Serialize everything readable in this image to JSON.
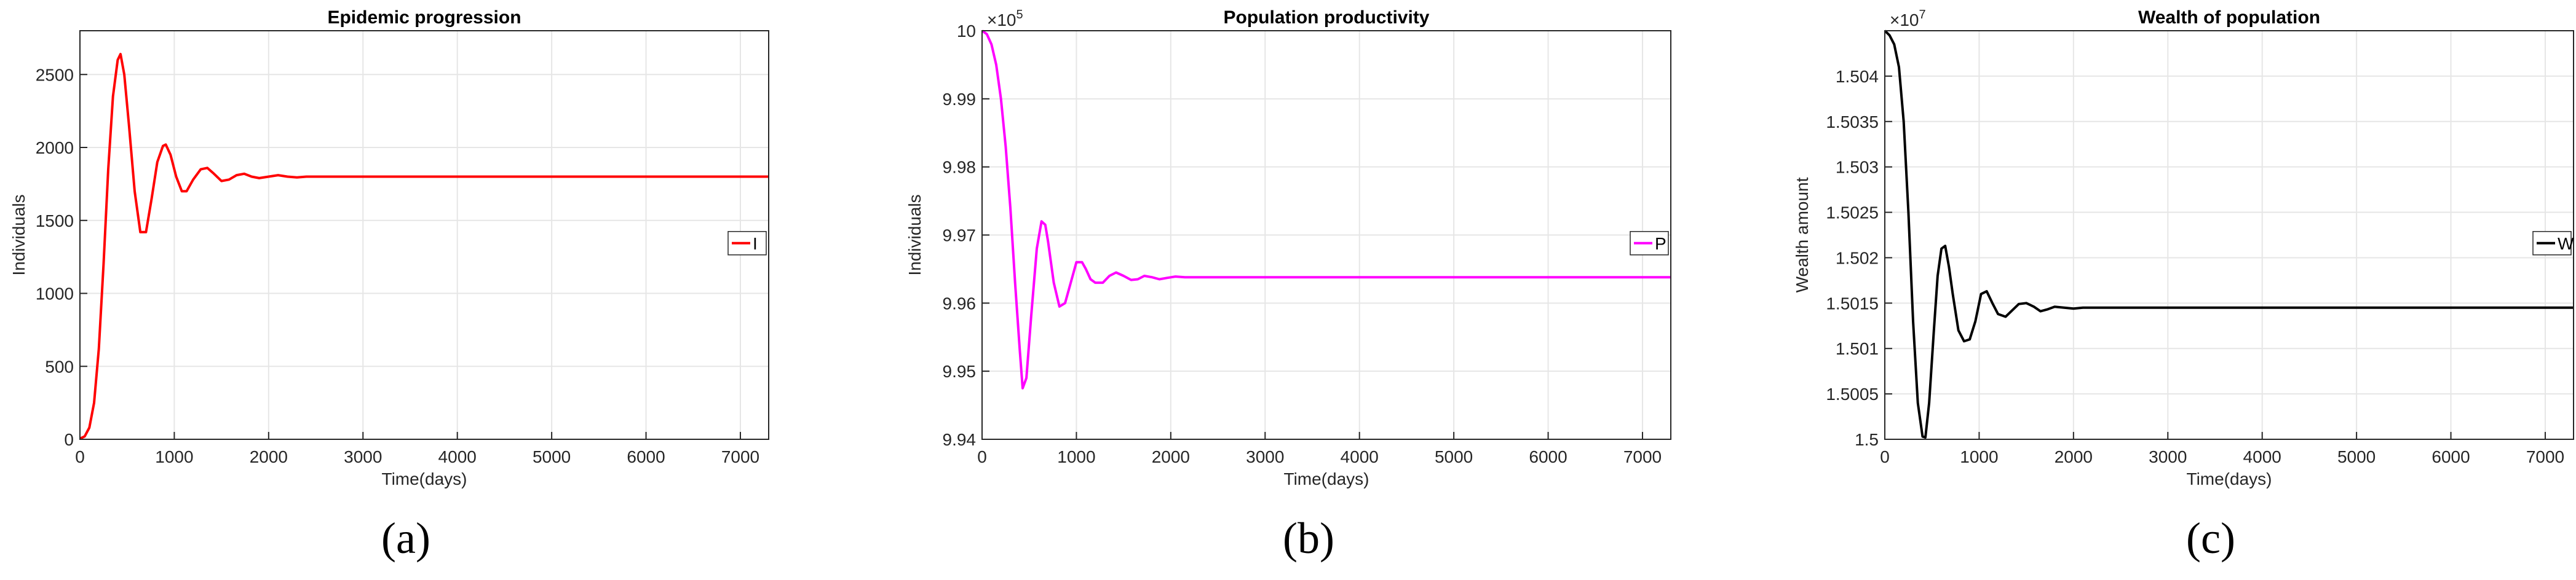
{
  "chart_data": [
    {
      "type": "line",
      "title": "Epidemic progression",
      "xlabel": "Time(days)",
      "ylabel": "Individuals",
      "xlim": [
        0,
        7300
      ],
      "ylim": [
        0,
        2800
      ],
      "xticks": [
        "0",
        "1000",
        "2000",
        "3000",
        "4000",
        "5000",
        "6000",
        "7000"
      ],
      "yticks": [
        "0",
        "500",
        "1000",
        "1500",
        "2000",
        "2500"
      ],
      "exponent": "",
      "grid": true,
      "legend_position": "right",
      "caption": "(a)",
      "series": [
        {
          "name": "I",
          "color": "#ff0000",
          "x": [
            0,
            50,
            100,
            150,
            200,
            250,
            300,
            350,
            400,
            430,
            470,
            520,
            580,
            640,
            700,
            760,
            820,
            880,
            910,
            960,
            1020,
            1080,
            1130,
            1200,
            1280,
            1350,
            1420,
            1500,
            1580,
            1660,
            1740,
            1820,
            1900,
            2000,
            2100,
            2200,
            2300,
            2400,
            2500,
            2600,
            2700,
            2800,
            3000,
            3300,
            4000,
            5000,
            6000,
            7300
          ],
          "y": [
            5,
            20,
            80,
            250,
            620,
            1200,
            1850,
            2350,
            2600,
            2640,
            2500,
            2150,
            1700,
            1420,
            1420,
            1650,
            1900,
            2010,
            2020,
            1950,
            1800,
            1700,
            1700,
            1780,
            1850,
            1860,
            1820,
            1770,
            1780,
            1810,
            1820,
            1800,
            1790,
            1800,
            1810,
            1800,
            1795,
            1800,
            1800,
            1800,
            1800,
            1800,
            1800,
            1800,
            1800,
            1800,
            1800,
            1800
          ]
        }
      ]
    },
    {
      "type": "line",
      "title": "Population productivity",
      "xlabel": "Time(days)",
      "ylabel": "Individuals",
      "xlim": [
        0,
        7300
      ],
      "ylim": [
        9.94,
        10
      ],
      "xticks": [
        "0",
        "1000",
        "2000",
        "3000",
        "4000",
        "5000",
        "6000",
        "7000"
      ],
      "yticks": [
        "9.94",
        "9.95",
        "9.96",
        "9.97",
        "9.98",
        "9.99",
        "10"
      ],
      "exponent": "5",
      "grid": true,
      "legend_position": "right",
      "caption": "(b)",
      "series": [
        {
          "name": "P",
          "color": "#ff00ff",
          "x": [
            0,
            50,
            100,
            150,
            200,
            250,
            300,
            350,
            400,
            430,
            470,
            520,
            580,
            630,
            670,
            700,
            760,
            820,
            880,
            940,
            1000,
            1060,
            1100,
            1150,
            1200,
            1280,
            1350,
            1420,
            1500,
            1580,
            1650,
            1720,
            1800,
            1880,
            1960,
            2050,
            2150,
            2300,
            2500,
            2800,
            3200,
            4000,
            5000,
            6000,
            7300
          ],
          "y": [
            10.0,
            9.9995,
            9.998,
            9.995,
            9.99,
            9.983,
            9.974,
            9.963,
            9.953,
            9.9475,
            9.949,
            9.958,
            9.968,
            9.972,
            9.9715,
            9.969,
            9.963,
            9.9595,
            9.96,
            9.963,
            9.966,
            9.966,
            9.965,
            9.9635,
            9.963,
            9.963,
            9.964,
            9.9645,
            9.964,
            9.9634,
            9.9635,
            9.964,
            9.9638,
            9.9635,
            9.9637,
            9.9639,
            9.9638,
            9.9638,
            9.9638,
            9.9638,
            9.9638,
            9.9638,
            9.9638,
            9.9638,
            9.9638
          ]
        }
      ]
    },
    {
      "type": "line",
      "title": "Wealth of population",
      "xlabel": "Time(days)",
      "ylabel": "Wealth amount",
      "xlim": [
        0,
        7300
      ],
      "ylim": [
        1.5,
        1.5045
      ],
      "xticks": [
        "0",
        "1000",
        "2000",
        "3000",
        "4000",
        "5000",
        "6000",
        "7000"
      ],
      "yticks": [
        "1.5",
        "1.5005",
        "1.501",
        "1.5015",
        "1.502",
        "1.5025",
        "1.503",
        "1.5035",
        "1.504"
      ],
      "exponent": "7",
      "grid": true,
      "legend_position": "right",
      "caption": "(c)",
      "series": [
        {
          "name": "W",
          "color": "#000000",
          "x": [
            0,
            50,
            100,
            150,
            200,
            250,
            300,
            350,
            400,
            430,
            470,
            520,
            560,
            600,
            640,
            680,
            720,
            780,
            840,
            900,
            960,
            1020,
            1080,
            1140,
            1200,
            1280,
            1350,
            1420,
            1500,
            1580,
            1650,
            1720,
            1800,
            1900,
            2000,
            2100,
            2200,
            2400,
            2700,
            3000,
            4000,
            5000,
            6000,
            7300
          ],
          "y": [
            1.5045,
            1.50445,
            1.50435,
            1.5041,
            1.5035,
            1.5025,
            1.5013,
            1.5004,
            1.50003,
            1.50002,
            1.5004,
            1.5012,
            1.5018,
            1.5021,
            1.50213,
            1.5019,
            1.5016,
            1.5012,
            1.50108,
            1.5011,
            1.5013,
            1.5016,
            1.50163,
            1.5015,
            1.50138,
            1.50135,
            1.50142,
            1.50149,
            1.5015,
            1.50146,
            1.50141,
            1.50143,
            1.50146,
            1.50145,
            1.50144,
            1.50145,
            1.50145,
            1.50145,
            1.50145,
            1.50145,
            1.50145,
            1.50145,
            1.50145,
            1.50145
          ]
        }
      ]
    }
  ]
}
